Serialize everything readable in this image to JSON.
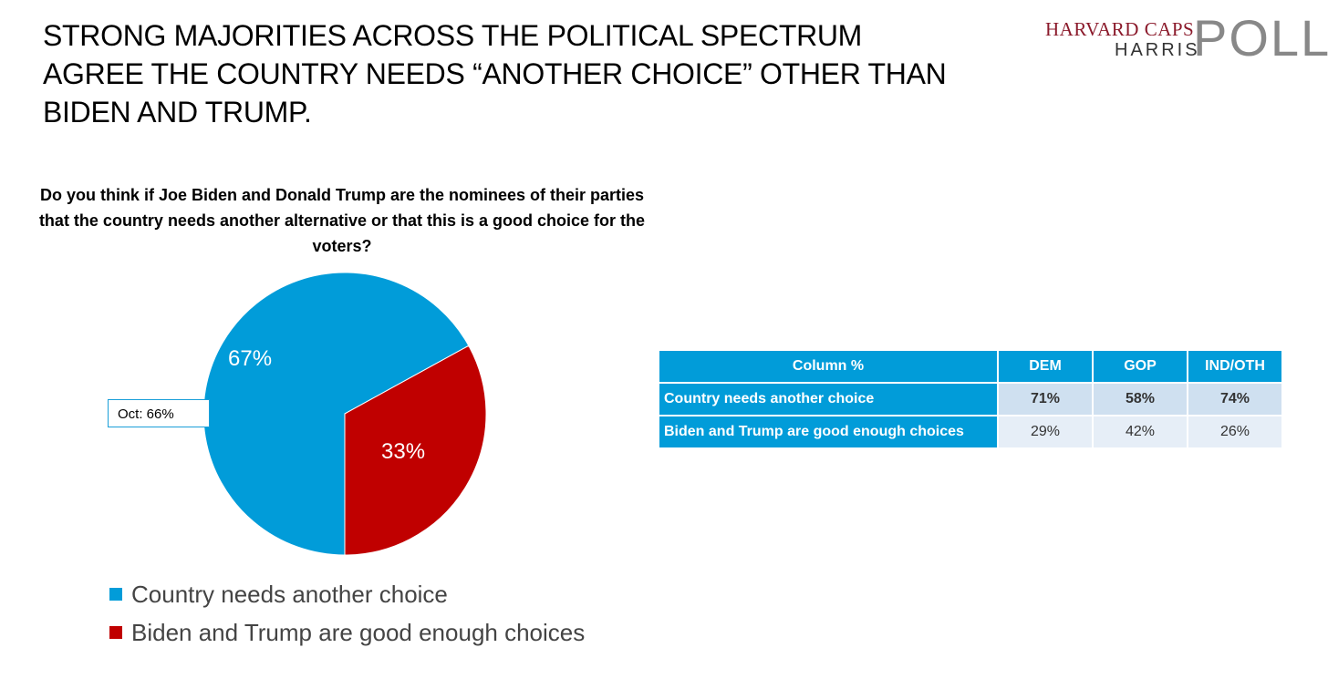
{
  "slide": {
    "title": "STRONG MAJORITIES ACROSS THE POLITICAL SPECTRUM AGREE THE COUNTRY NEEDS “ANOTHER CHOICE” OTHER THAN BIDEN AND TRUMP.",
    "logo": {
      "line1": "HARVARD CAPS",
      "line2": "HARRIS",
      "line3": "POLL"
    }
  },
  "chart_data": {
    "type": "pie",
    "title": "Do you think if Joe Biden and Donald Trump are the nominees of their parties that the country needs another alternative or that this is a good choice for the voters?",
    "slices": [
      {
        "name": "Country needs another choice",
        "value": 67,
        "label": "67%",
        "color": "#019cd9"
      },
      {
        "name": "Biden and Trump are good enough choices",
        "value": 33,
        "label": "33%",
        "color": "#c00000"
      }
    ],
    "annotations": [
      {
        "text": "Oct: 66%"
      }
    ],
    "legend_position": "bottom"
  },
  "table": {
    "headers": [
      "Column %",
      "DEM",
      "GOP",
      "IND/OTH"
    ],
    "rows": [
      {
        "label": "Country needs another choice",
        "values": [
          "71%",
          "58%",
          "74%"
        ]
      },
      {
        "label": "Biden and Trump are good enough choices",
        "values": [
          "29%",
          "42%",
          "26%"
        ]
      }
    ]
  }
}
